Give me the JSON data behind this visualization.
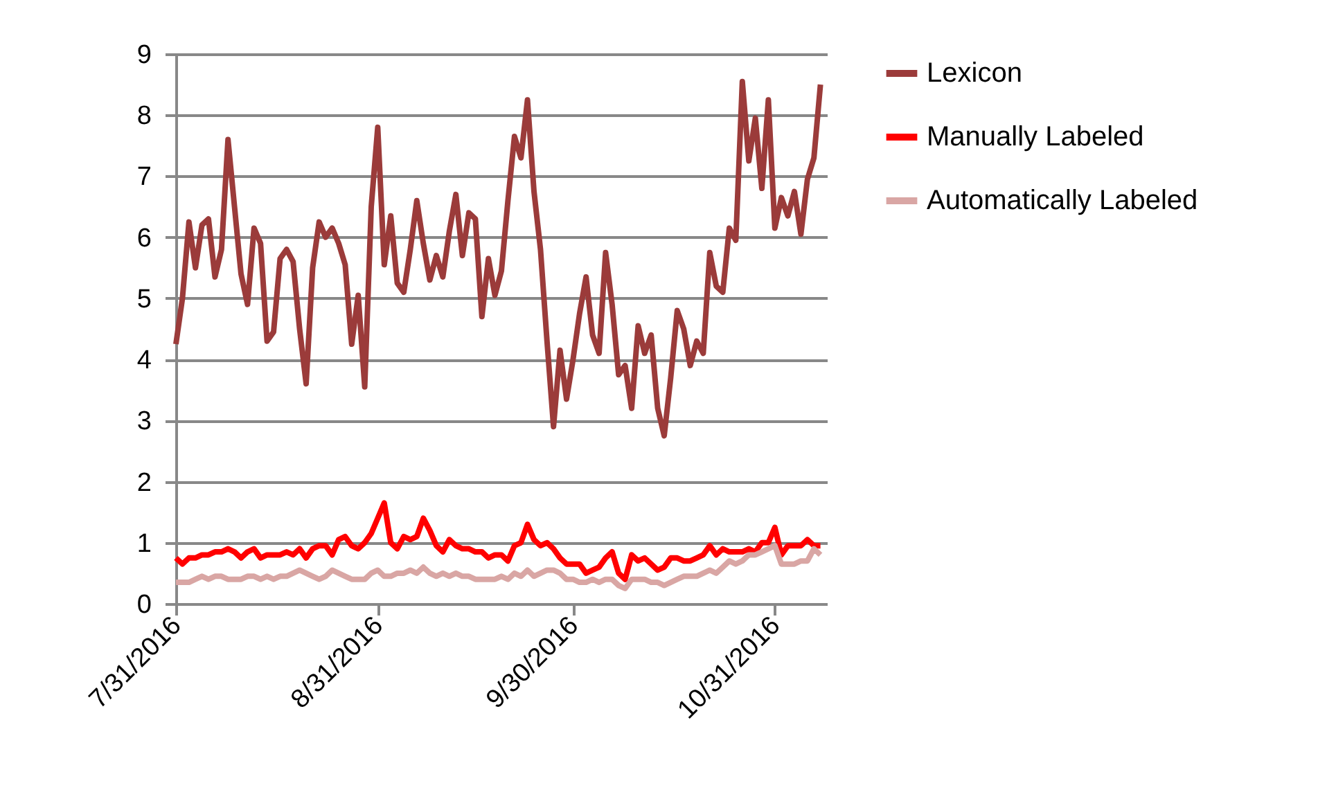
{
  "chart_data": {
    "type": "line",
    "x": [
      "2016-07-31",
      "2016-08-01",
      "2016-08-02",
      "2016-08-03",
      "2016-08-04",
      "2016-08-05",
      "2016-08-06",
      "2016-08-07",
      "2016-08-08",
      "2016-08-09",
      "2016-08-10",
      "2016-08-11",
      "2016-08-12",
      "2016-08-13",
      "2016-08-14",
      "2016-08-15",
      "2016-08-16",
      "2016-08-17",
      "2016-08-18",
      "2016-08-19",
      "2016-08-20",
      "2016-08-21",
      "2016-08-22",
      "2016-08-23",
      "2016-08-24",
      "2016-08-25",
      "2016-08-26",
      "2016-08-27",
      "2016-08-28",
      "2016-08-29",
      "2016-08-30",
      "2016-08-31",
      "2016-09-01",
      "2016-09-02",
      "2016-09-03",
      "2016-09-04",
      "2016-09-05",
      "2016-09-06",
      "2016-09-07",
      "2016-09-08",
      "2016-09-09",
      "2016-09-10",
      "2016-09-11",
      "2016-09-12",
      "2016-09-13",
      "2016-09-14",
      "2016-09-15",
      "2016-09-16",
      "2016-09-17",
      "2016-09-18",
      "2016-09-19",
      "2016-09-20",
      "2016-09-21",
      "2016-09-22",
      "2016-09-23",
      "2016-09-24",
      "2016-09-25",
      "2016-09-26",
      "2016-09-27",
      "2016-09-28",
      "2016-09-29",
      "2016-09-30",
      "2016-10-01",
      "2016-10-02",
      "2016-10-03",
      "2016-10-04",
      "2016-10-05",
      "2016-10-06",
      "2016-10-07",
      "2016-10-08",
      "2016-10-09",
      "2016-10-10",
      "2016-10-11",
      "2016-10-12",
      "2016-10-13",
      "2016-10-14",
      "2016-10-15",
      "2016-10-16",
      "2016-10-17",
      "2016-10-18",
      "2016-10-19",
      "2016-10-20",
      "2016-10-21",
      "2016-10-22",
      "2016-10-23",
      "2016-10-24",
      "2016-10-25",
      "2016-10-26",
      "2016-10-27",
      "2016-10-28",
      "2016-10-29",
      "2016-10-30",
      "2016-10-31",
      "2016-11-01",
      "2016-11-02",
      "2016-11-03",
      "2016-11-04",
      "2016-11-05",
      "2016-11-06",
      "2016-11-07"
    ],
    "series": [
      {
        "name": "Lexicon",
        "color": "#9b3b3a",
        "values": [
          4.25,
          5.0,
          6.25,
          5.5,
          6.2,
          6.3,
          5.35,
          5.8,
          7.6,
          6.5,
          5.4,
          4.9,
          6.15,
          5.9,
          4.3,
          4.45,
          5.65,
          5.8,
          5.6,
          4.5,
          3.6,
          5.5,
          6.25,
          6.0,
          6.15,
          5.9,
          5.55,
          4.25,
          5.05,
          3.55,
          6.5,
          7.8,
          5.55,
          6.35,
          5.25,
          5.1,
          5.8,
          6.6,
          5.9,
          5.3,
          5.7,
          5.35,
          6.1,
          6.7,
          5.7,
          6.4,
          6.3,
          4.7,
          5.65,
          5.05,
          5.45,
          6.6,
          7.65,
          7.3,
          8.25,
          6.75,
          5.8,
          4.3,
          2.9,
          4.15,
          3.35,
          4.0,
          4.75,
          5.35,
          4.4,
          4.1,
          5.75,
          4.9,
          3.75,
          3.9,
          3.2,
          4.55,
          4.1,
          4.4,
          3.2,
          2.75,
          3.7,
          4.8,
          4.5,
          3.9,
          4.3,
          4.1,
          5.75,
          5.2,
          5.1,
          6.15,
          5.95,
          8.55,
          7.25,
          7.95,
          6.8,
          8.25,
          6.15,
          6.65,
          6.35,
          6.75,
          6.05,
          6.95,
          7.3,
          8.5
        ]
      },
      {
        "name": "Manually Labeled",
        "color": "#ff0000",
        "values": [
          0.75,
          0.65,
          0.75,
          0.75,
          0.8,
          0.8,
          0.85,
          0.85,
          0.9,
          0.85,
          0.75,
          0.85,
          0.9,
          0.75,
          0.8,
          0.8,
          0.8,
          0.85,
          0.8,
          0.9,
          0.75,
          0.9,
          0.95,
          0.95,
          0.8,
          1.05,
          1.1,
          0.95,
          0.9,
          1.0,
          1.15,
          1.4,
          1.65,
          1.0,
          0.9,
          1.1,
          1.05,
          1.1,
          1.4,
          1.2,
          0.95,
          0.85,
          1.05,
          0.95,
          0.9,
          0.9,
          0.85,
          0.85,
          0.75,
          0.8,
          0.8,
          0.7,
          0.95,
          1.0,
          1.3,
          1.05,
          0.95,
          1.0,
          0.9,
          0.75,
          0.65,
          0.65,
          0.65,
          0.5,
          0.55,
          0.6,
          0.75,
          0.85,
          0.5,
          0.4,
          0.8,
          0.7,
          0.75,
          0.65,
          0.55,
          0.6,
          0.75,
          0.75,
          0.7,
          0.7,
          0.75,
          0.8,
          0.95,
          0.8,
          0.9,
          0.85,
          0.85,
          0.85,
          0.9,
          0.85,
          1.0,
          1.0,
          1.25,
          0.8,
          0.95,
          0.95,
          0.95,
          1.05,
          0.95,
          0.95
        ]
      },
      {
        "name": "Automatically Labeled",
        "color": "#d9a6a4",
        "values": [
          0.35,
          0.35,
          0.35,
          0.4,
          0.45,
          0.4,
          0.45,
          0.45,
          0.4,
          0.4,
          0.4,
          0.45,
          0.45,
          0.4,
          0.45,
          0.4,
          0.45,
          0.45,
          0.5,
          0.55,
          0.5,
          0.45,
          0.4,
          0.45,
          0.55,
          0.5,
          0.45,
          0.4,
          0.4,
          0.4,
          0.5,
          0.55,
          0.45,
          0.45,
          0.5,
          0.5,
          0.55,
          0.5,
          0.6,
          0.5,
          0.45,
          0.5,
          0.45,
          0.5,
          0.45,
          0.45,
          0.4,
          0.4,
          0.4,
          0.4,
          0.45,
          0.4,
          0.5,
          0.45,
          0.55,
          0.45,
          0.5,
          0.55,
          0.55,
          0.5,
          0.4,
          0.4,
          0.35,
          0.35,
          0.4,
          0.35,
          0.4,
          0.4,
          0.3,
          0.25,
          0.4,
          0.4,
          0.4,
          0.35,
          0.35,
          0.3,
          0.35,
          0.4,
          0.45,
          0.45,
          0.45,
          0.5,
          0.55,
          0.5,
          0.6,
          0.7,
          0.65,
          0.7,
          0.8,
          0.8,
          0.85,
          0.9,
          0.95,
          0.65,
          0.65,
          0.65,
          0.7,
          0.7,
          0.9,
          0.8
        ]
      }
    ],
    "xlim": [
      "2016-07-31",
      "2016-11-08"
    ],
    "xticks": [
      {
        "value": "2016-07-31",
        "label": "7/31/2016"
      },
      {
        "value": "2016-08-31",
        "label": "8/31/2016"
      },
      {
        "value": "2016-09-30",
        "label": "9/30/2016"
      },
      {
        "value": "2016-10-31",
        "label": "10/31/2016"
      }
    ],
    "ylim": [
      0,
      9
    ],
    "yticks": [
      0,
      1,
      2,
      3,
      4,
      5,
      6,
      7,
      8,
      9
    ],
    "grid": "y",
    "legend": "right",
    "marker": "none",
    "line_style": "solid"
  }
}
